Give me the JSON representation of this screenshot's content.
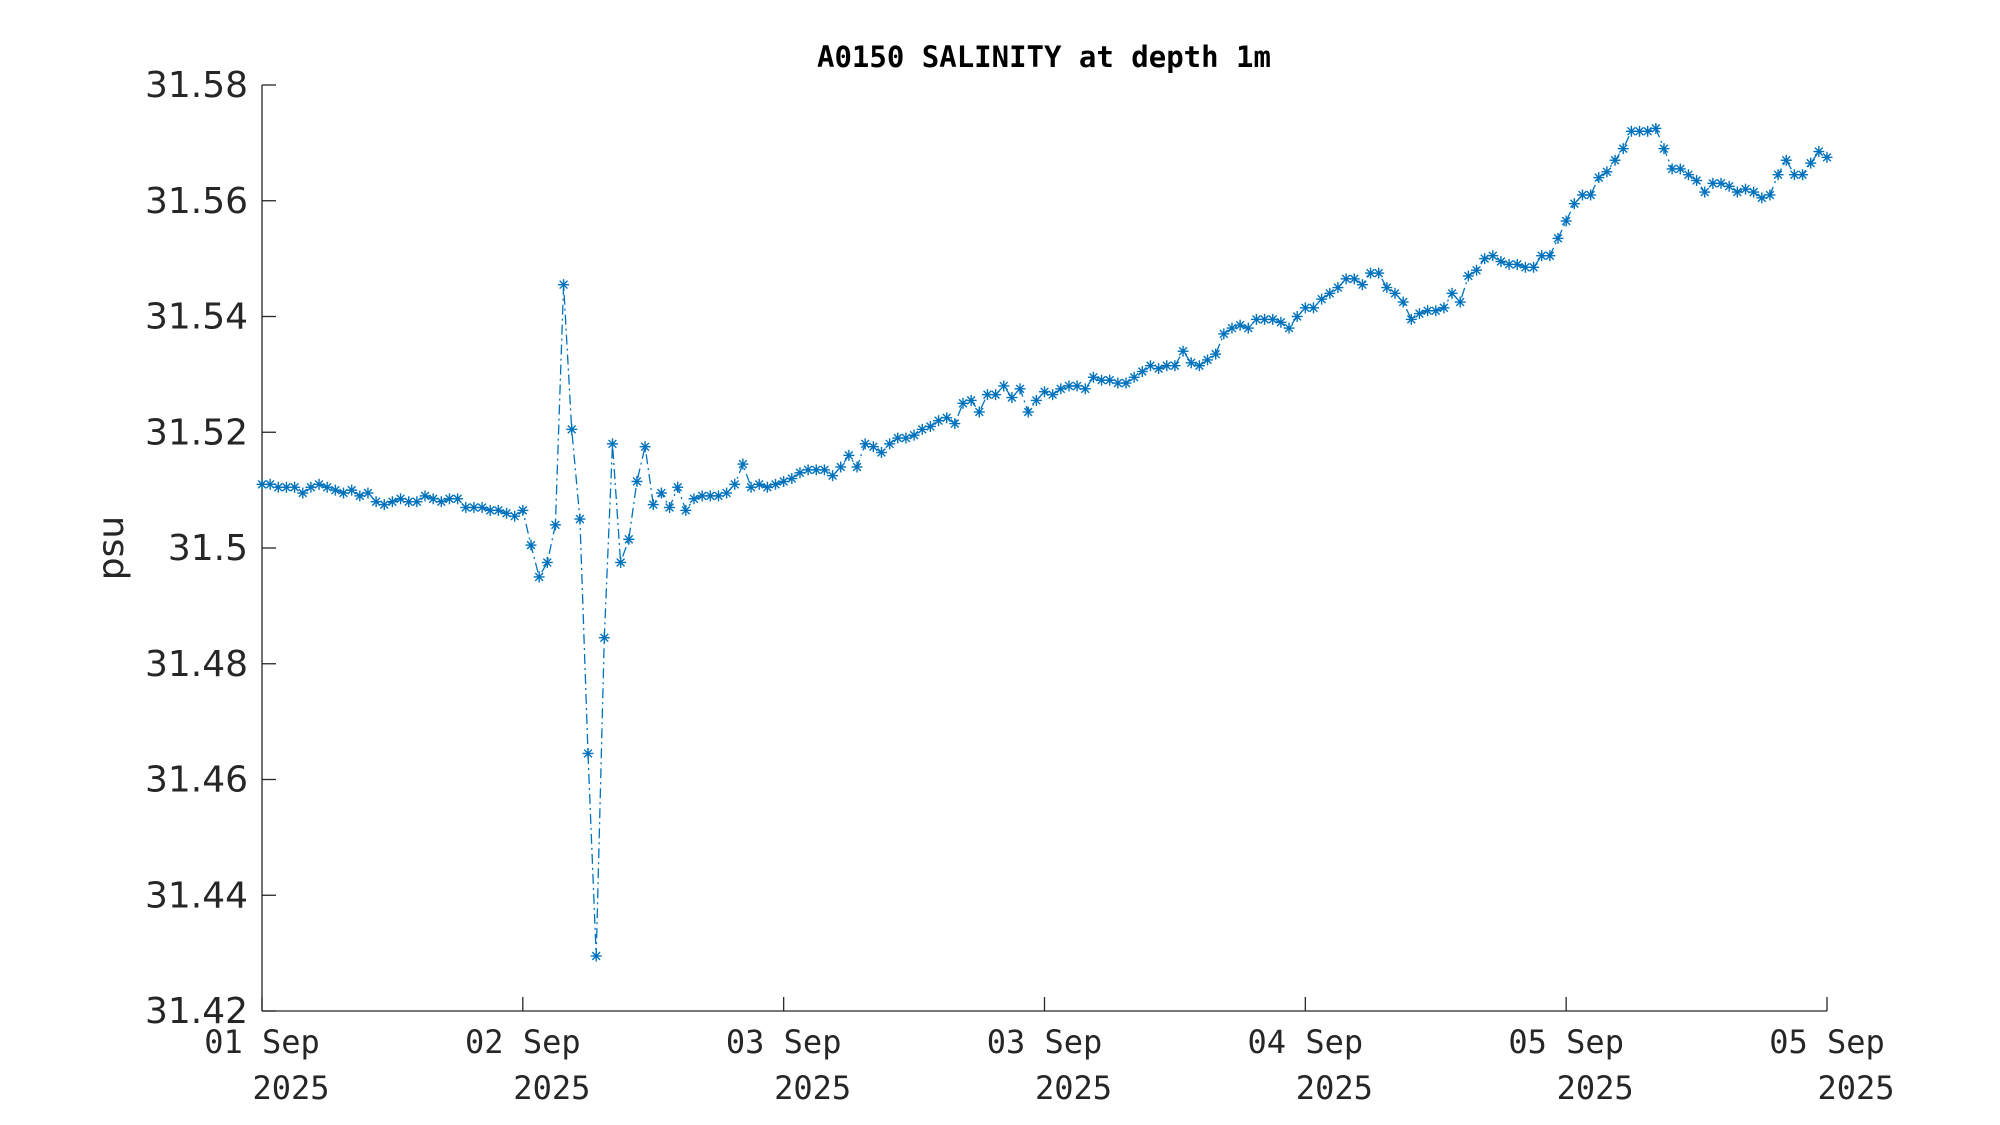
{
  "chart_data": {
    "type": "line",
    "title": "A0150 SALINITY at depth 1m",
    "xlabel": "",
    "ylabel": "psu",
    "ylim": [
      31.42,
      31.58
    ],
    "yticks": [
      31.42,
      31.44,
      31.46,
      31.48,
      31.5,
      31.52,
      31.54,
      31.56,
      31.58
    ],
    "ytick_labels": [
      "31.42",
      "31.44",
      "31.46",
      "31.48",
      "31.5",
      "31.52",
      "31.54",
      "31.56",
      "31.58"
    ],
    "xlim_hours": [
      0,
      96
    ],
    "xticks": [
      {
        "hour": 0,
        "line1": "01 Sep",
        "line2": "2025"
      },
      {
        "hour": 16,
        "line1": "02 Sep",
        "line2": "2025"
      },
      {
        "hour": 32,
        "line1": "03 Sep",
        "line2": "2025"
      },
      {
        "hour": 48,
        "line1": "03 Sep",
        "line2": "2025"
      },
      {
        "hour": 64,
        "line1": "04 Sep",
        "line2": "2025"
      },
      {
        "hour": 80,
        "line1": "05 Sep",
        "line2": "2025"
      },
      {
        "hour": 96,
        "line1": "05 Sep",
        "line2": "2025"
      }
    ],
    "series": [
      {
        "color": "#0072bd",
        "marker": "asterisk",
        "line_style": "dash-dot",
        "x_hours": [
          0.0,
          0.5,
          1.0,
          1.5,
          2.0,
          2.5,
          3.0,
          3.5,
          4.0,
          4.5,
          5.0,
          5.5,
          6.0,
          6.5,
          7.0,
          7.5,
          8.0,
          8.5,
          9.0,
          9.5,
          10.0,
          10.5,
          11.0,
          11.5,
          12.0,
          12.5,
          13.0,
          13.5,
          14.0,
          14.5,
          15.0,
          15.5,
          16.0,
          16.5,
          17.0,
          17.5,
          18.0,
          18.5,
          19.0,
          19.5,
          20.0,
          20.5,
          21.0,
          21.5,
          22.0,
          22.5,
          23.0,
          23.5,
          24.0,
          24.5,
          25.0,
          25.5,
          26.0,
          26.5,
          27.0,
          27.5,
          28.0,
          28.5,
          29.0,
          29.5,
          30.0,
          30.5,
          31.0,
          31.5,
          32.0,
          32.5,
          33.0,
          33.5,
          34.0,
          34.5,
          35.0,
          35.5,
          36.0,
          36.5,
          37.0,
          37.5,
          38.0,
          38.5,
          39.0,
          39.5,
          40.0,
          40.5,
          41.0,
          41.5,
          42.0,
          42.5,
          43.0,
          43.5,
          44.0,
          44.5,
          45.0,
          45.5,
          46.0,
          46.5,
          47.0,
          47.5,
          48.0,
          48.5,
          49.0,
          49.5,
          50.0,
          50.5,
          51.0,
          51.5,
          52.0,
          52.5,
          53.0,
          53.5,
          54.0,
          54.5,
          55.0,
          55.5,
          56.0,
          56.5,
          57.0,
          57.5,
          58.0,
          58.5,
          59.0,
          59.5,
          60.0,
          60.5,
          61.0,
          61.5,
          62.0,
          62.5,
          63.0,
          63.5,
          64.0,
          64.5,
          65.0,
          65.5,
          66.0,
          66.5,
          67.0,
          67.5,
          68.0,
          68.5,
          69.0,
          69.5,
          70.0,
          70.5,
          71.0,
          71.5,
          72.0,
          72.5,
          73.0,
          73.5,
          74.0,
          74.5,
          75.0,
          75.5,
          76.0,
          76.5,
          77.0,
          77.5,
          78.0,
          78.5,
          79.0,
          79.5,
          80.0,
          80.5,
          81.0,
          81.5,
          82.0,
          82.5,
          83.0,
          83.5,
          84.0,
          84.5,
          85.0,
          85.5,
          86.0,
          86.5,
          87.0,
          87.5,
          88.0,
          88.5,
          89.0,
          89.5,
          90.0,
          90.5,
          91.0,
          91.5,
          92.0,
          92.5,
          93.0,
          93.5,
          94.0,
          94.5,
          95.0,
          95.5,
          96.0
        ],
        "values": [
          31.511,
          31.511,
          31.5105,
          31.5105,
          31.5105,
          31.5095,
          31.5105,
          31.511,
          31.5105,
          31.51,
          31.5095,
          31.51,
          31.509,
          31.5095,
          31.508,
          31.5075,
          31.508,
          31.5085,
          31.508,
          31.508,
          31.509,
          31.5085,
          31.508,
          31.5085,
          31.5085,
          31.507,
          31.507,
          31.507,
          31.5065,
          31.5065,
          31.506,
          31.5055,
          31.5065,
          31.5005,
          31.495,
          31.4975,
          31.504,
          31.5455,
          31.5205,
          31.505,
          31.4645,
          31.4295,
          31.4845,
          31.518,
          31.4975,
          31.5015,
          31.5115,
          31.5175,
          31.5075,
          31.5095,
          31.507,
          31.5105,
          31.5065,
          31.5085,
          31.509,
          31.509,
          31.509,
          31.5095,
          31.511,
          31.5145,
          31.5105,
          31.511,
          31.5105,
          31.511,
          31.5115,
          31.512,
          31.513,
          31.5135,
          31.5135,
          31.5135,
          31.5125,
          31.514,
          31.516,
          31.514,
          31.518,
          31.5175,
          31.5165,
          31.518,
          31.519,
          31.519,
          31.5195,
          31.5205,
          31.521,
          31.522,
          31.5225,
          31.5215,
          31.525,
          31.5255,
          31.5235,
          31.5265,
          31.5265,
          31.528,
          31.526,
          31.5275,
          31.5235,
          31.5255,
          31.527,
          31.5265,
          31.5275,
          31.528,
          31.528,
          31.5275,
          31.5295,
          31.529,
          31.529,
          31.5285,
          31.5285,
          31.5295,
          31.5305,
          31.5315,
          31.531,
          31.5315,
          31.5315,
          31.534,
          31.532,
          31.5315,
          31.5325,
          31.5335,
          31.537,
          31.538,
          31.5385,
          31.538,
          31.5395,
          31.5395,
          31.5395,
          31.539,
          31.538,
          31.54,
          31.5415,
          31.5415,
          31.543,
          31.544,
          31.545,
          31.5465,
          31.5465,
          31.5455,
          31.5475,
          31.5475,
          31.545,
          31.544,
          31.5425,
          31.5395,
          31.5405,
          31.541,
          31.541,
          31.5415,
          31.544,
          31.5425,
          31.547,
          31.548,
          31.55,
          31.5505,
          31.5495,
          31.549,
          31.549,
          31.5485,
          31.5485,
          31.5505,
          31.5505,
          31.5535,
          31.5565,
          31.5595,
          31.561,
          31.561,
          31.564,
          31.565,
          31.567,
          31.569,
          31.572,
          31.572,
          31.572,
          31.5725,
          31.569,
          31.5655,
          31.5655,
          31.5645,
          31.5635,
          31.5615,
          31.563,
          31.563,
          31.5625,
          31.5615,
          31.562,
          31.5615,
          31.5605,
          31.561,
          31.5645,
          31.567,
          31.5645,
          31.5645,
          31.5665,
          31.5685,
          31.5675
        ]
      }
    ],
    "grid": false,
    "legend": "none"
  }
}
